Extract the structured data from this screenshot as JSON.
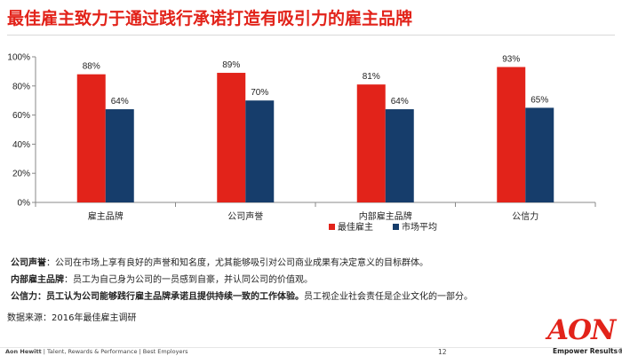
{
  "title": "最佳雇主致力于通过践行承诺打造有吸引力的雇主品牌",
  "chart_data": {
    "type": "bar",
    "categories": [
      "雇主品牌",
      "公司声誉",
      "内部雇主品牌",
      "公信力"
    ],
    "series": [
      {
        "name": "最佳雇主",
        "color": "#e2231a",
        "values": [
          88,
          89,
          81,
          93
        ],
        "labels": [
          "88%",
          "89%",
          "81%",
          "93%"
        ]
      },
      {
        "name": "市场平均",
        "color": "#163d6b",
        "values": [
          64,
          70,
          64,
          65
        ],
        "labels": [
          "64%",
          "70%",
          "64%",
          "65%"
        ]
      }
    ],
    "yticks": [
      "0%",
      "20%",
      "40%",
      "60%",
      "80%",
      "100%"
    ],
    "ylim": [
      0,
      100
    ],
    "legend": "bottom-right",
    "grid": false
  },
  "notes": [
    {
      "term": "公司声誉",
      "sep": "：",
      "text": "公司在市场上享有良好的声誉和知名度，尤其能够吸引对公司商业成果有决定意义的目标群体。",
      "bold_text": ""
    },
    {
      "term": "内部雇主品牌",
      "sep": "：",
      "text": "员工为自己身为公司的一员感到自豪，并认同公司的价值观。",
      "bold_text": ""
    },
    {
      "term": "公信力",
      "sep": "：",
      "bold_text": "员工认为公司能够践行雇主品牌承诺且提供持续一致的工作体验。",
      "text": "员工视企业社会责任是企业文化的一部分。"
    }
  ],
  "source": "数据来源：2016年最佳雇主调研",
  "footer": {
    "company": "Aon Hewitt",
    "tagline": " | Talent, Rewards & Performance | Best Employers",
    "page": "12"
  },
  "logo": {
    "text": "AON",
    "tagline": "Empower Results®"
  }
}
